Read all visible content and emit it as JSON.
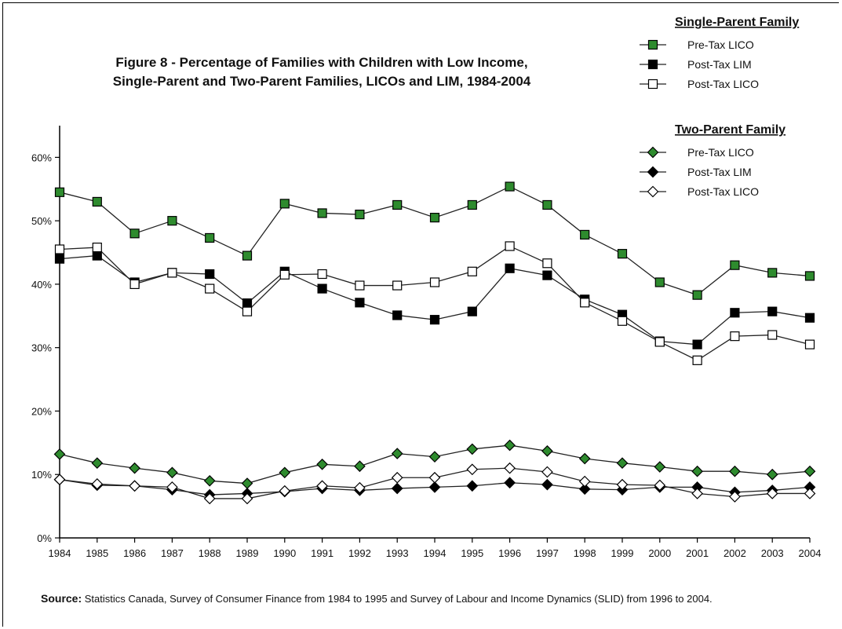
{
  "chart_data": {
    "type": "line",
    "title_line1": "Figure 8 - Percentage of Families with Children with Low Income,",
    "title_line2": "Single-Parent and Two-Parent Families, LICOs and LIM, 1984-2004",
    "x": [
      "1984",
      "1985",
      "1986",
      "1987",
      "1988",
      "1989",
      "1990",
      "1991",
      "1992",
      "1993",
      "1994",
      "1995",
      "1996",
      "1997",
      "1998",
      "1999",
      "2000",
      "2001",
      "2002",
      "2003",
      "2004"
    ],
    "y_ticks": [
      "0%",
      "10%",
      "20%",
      "30%",
      "40%",
      "50%",
      "60%"
    ],
    "ylim": [
      0,
      65
    ],
    "groups": [
      {
        "heading": "Single-Parent Family",
        "series": [
          {
            "name": "Pre-Tax LICO",
            "marker": "square",
            "fill": "#2e8b2e",
            "values": [
              54.5,
              53.0,
              48.0,
              50.0,
              47.3,
              44.5,
              52.7,
              51.2,
              51.0,
              52.5,
              50.5,
              52.5,
              55.4,
              52.5,
              47.8,
              44.8,
              40.3,
              38.3,
              43.0,
              41.8,
              41.3
            ]
          },
          {
            "name": "Post-Tax LIM",
            "marker": "square",
            "fill": "#000000",
            "values": [
              44.0,
              44.5,
              40.3,
              41.8,
              41.6,
              37.0,
              42.0,
              39.3,
              37.1,
              35.1,
              34.4,
              35.7,
              42.5,
              41.4,
              37.6,
              35.2,
              31.0,
              30.5,
              35.5,
              35.7,
              34.7
            ]
          },
          {
            "name": "Post-Tax LICO",
            "marker": "square",
            "fill": "#ffffff",
            "values": [
              45.5,
              45.8,
              40.0,
              41.8,
              39.3,
              35.7,
              41.5,
              41.6,
              39.8,
              39.8,
              40.3,
              42.0,
              46.0,
              43.3,
              37.1,
              34.2,
              30.9,
              28.0,
              31.8,
              32.0,
              30.5
            ]
          }
        ]
      },
      {
        "heading": "Two-Parent Family",
        "series": [
          {
            "name": "Pre-Tax LICO",
            "marker": "diamond",
            "fill": "#2e8b2e",
            "values": [
              13.2,
              11.8,
              11.0,
              10.3,
              9.0,
              8.6,
              10.3,
              11.6,
              11.3,
              13.3,
              12.8,
              14.0,
              14.6,
              13.7,
              12.5,
              11.8,
              11.2,
              10.5,
              10.5,
              10.0,
              10.5
            ]
          },
          {
            "name": "Post-Tax LIM",
            "marker": "diamond",
            "fill": "#000000",
            "values": [
              9.2,
              8.3,
              8.2,
              7.6,
              6.8,
              7.0,
              7.3,
              7.8,
              7.5,
              7.8,
              8.0,
              8.2,
              8.7,
              8.4,
              7.7,
              7.6,
              8.0,
              8.0,
              7.2,
              7.5,
              8.0
            ]
          },
          {
            "name": "Post-Tax LICO",
            "marker": "diamond",
            "fill": "#ffffff",
            "values": [
              9.2,
              8.5,
              8.2,
              8.0,
              6.2,
              6.2,
              7.4,
              8.2,
              7.9,
              9.5,
              9.5,
              10.8,
              11.0,
              10.4,
              8.9,
              8.4,
              8.3,
              7.0,
              6.5,
              7.0,
              7.0
            ]
          }
        ]
      }
    ],
    "grid": false,
    "legend_position": "top-right"
  },
  "source": {
    "label": "Source:",
    "text": "Statistics Canada, Survey of Consumer Finance from 1984 to 1995 and Survey of Labour and Income Dynamics (SLID) from 1996 to 2004."
  }
}
